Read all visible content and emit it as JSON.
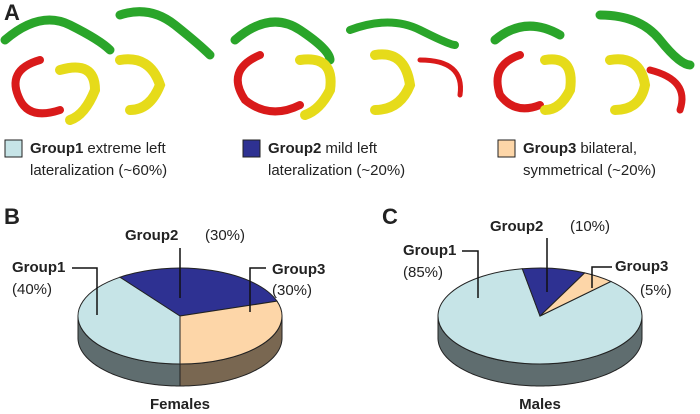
{
  "panels": [
    "A",
    "B",
    "C"
  ],
  "legend": [
    {
      "name": "Group1",
      "lines": [
        "extreme left",
        "lateralization (~60%)"
      ]
    },
    {
      "name": "Group2",
      "lines": [
        "mild left",
        "lateralization (~20%)"
      ]
    },
    {
      "name": "Group3",
      "lines": [
        "bilateral,",
        "symmetrical (~20%)"
      ]
    }
  ],
  "chart_data": [
    {
      "type": "pie",
      "title": "Females",
      "categories": [
        "Group1",
        "Group2",
        "Group3"
      ],
      "values": [
        40,
        30,
        30
      ],
      "value_labels": [
        "(40%)",
        "(30%)",
        "(30%)"
      ],
      "colors": [
        "#c6e4e7",
        "#2e3192",
        "#fdd6a8"
      ]
    },
    {
      "type": "pie",
      "title": "Males",
      "categories": [
        "Group1",
        "Group2",
        "Group3"
      ],
      "values": [
        85,
        10,
        5
      ],
      "value_labels": [
        "(85%)",
        "(10%)",
        "(5%)"
      ],
      "colors": [
        "#c6e4e7",
        "#2e3192",
        "#fdd6a8"
      ]
    }
  ]
}
